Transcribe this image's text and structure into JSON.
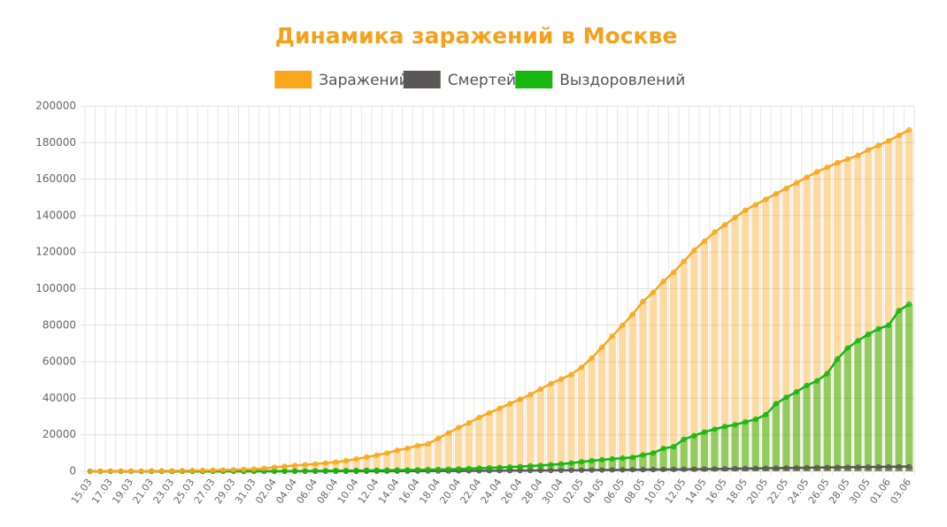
{
  "chart_data": {
    "type": "bar",
    "title": "Динамика заражений в Москве",
    "legend": "top",
    "grid": true,
    "categories": [
      "15.03",
      null,
      "17.03",
      null,
      "19.03",
      null,
      "21.03",
      null,
      "23.03",
      null,
      "25.03",
      null,
      "27.03",
      null,
      "29.03",
      null,
      "31.03",
      null,
      "02.04",
      null,
      "04.04",
      null,
      "06.04",
      null,
      "08.04",
      null,
      "10.04",
      null,
      "12.04",
      null,
      "14.04",
      null,
      "16.04",
      null,
      "18.04",
      null,
      "20.04",
      null,
      "22.04",
      null,
      "24.04",
      null,
      "26.04",
      null,
      "28.04",
      null,
      "30.04",
      null,
      "02.05",
      null,
      "04.05",
      null,
      "06.05",
      null,
      "08.05",
      null,
      "10.05",
      null,
      "12.05",
      null,
      "14.05",
      null,
      "16.05",
      null,
      "18.05",
      null,
      "20.05",
      null,
      "22.05",
      null,
      "24.05",
      null,
      "26.05",
      null,
      "28.05",
      null,
      "30.05",
      null,
      "01.06",
      null,
      "03.06"
    ],
    "ylim": [
      0,
      200000
    ],
    "yticks": [
      0,
      20000,
      40000,
      60000,
      80000,
      100000,
      120000,
      140000,
      160000,
      180000,
      200000
    ],
    "series": [
      {
        "name": "Заражений",
        "color": "#f9a81e",
        "values": [
          30,
          35,
          45,
          55,
          100,
          140,
          190,
          230,
          260,
          290,
          400,
          500,
          590,
          700,
          820,
          1000,
          1200,
          1600,
          2200,
          2700,
          3200,
          3600,
          4000,
          4500,
          5000,
          5800,
          6700,
          7800,
          8800,
          10000,
          11500,
          12600,
          14000,
          15000,
          18000,
          21000,
          24000,
          26500,
          29500,
          32000,
          34500,
          37000,
          39500,
          42000,
          45000,
          48000,
          50500,
          53000,
          57000,
          62000,
          68000,
          74000,
          80000,
          86000,
          93000,
          98000,
          104000,
          109000,
          115000,
          121000,
          126000,
          131000,
          135000,
          139000,
          143000,
          146000,
          149000,
          152000,
          155000,
          158000,
          161000,
          164000,
          166500,
          169000,
          171000,
          173000,
          176000,
          178500,
          181000,
          184000,
          187000
        ]
      },
      {
        "name": "Смертей",
        "color": "#5b5757",
        "values": [
          0,
          0,
          0,
          0,
          0,
          0,
          0,
          0,
          0,
          0,
          1,
          2,
          3,
          4,
          5,
          6,
          7,
          9,
          12,
          15,
          18,
          22,
          26,
          30,
          35,
          42,
          50,
          60,
          70,
          80,
          95,
          110,
          125,
          140,
          160,
          180,
          200,
          225,
          250,
          280,
          310,
          340,
          370,
          400,
          440,
          480,
          520,
          560,
          600,
          650,
          700,
          750,
          800,
          850,
          900,
          950,
          1000,
          1050,
          1100,
          1150,
          1200,
          1280,
          1360,
          1440,
          1520,
          1600,
          1680,
          1750,
          1820,
          1890,
          1960,
          2030,
          2100,
          2160,
          2220,
          2280,
          2340,
          2400,
          2460,
          2520,
          2580
        ]
      },
      {
        "name": "Выздоровлений",
        "color": "#16b80f",
        "values": [
          0,
          0,
          0,
          0,
          0,
          0,
          0,
          0,
          0,
          0,
          10,
          15,
          20,
          30,
          40,
          45,
          50,
          60,
          80,
          100,
          150,
          200,
          250,
          300,
          350,
          400,
          450,
          500,
          550,
          600,
          650,
          700,
          800,
          900,
          1000,
          1100,
          1300,
          1500,
          1700,
          1900,
          2100,
          2300,
          2600,
          2900,
          3200,
          3600,
          4000,
          4500,
          5200,
          5800,
          6300,
          6800,
          7200,
          7600,
          9000,
          10000,
          12500,
          13500,
          17500,
          19500,
          21500,
          23000,
          24500,
          25500,
          27000,
          28500,
          31000,
          37000,
          40500,
          43500,
          47000,
          49500,
          53500,
          61500,
          67500,
          71500,
          75000,
          78000,
          80000,
          88000,
          91500
        ]
      }
    ]
  }
}
